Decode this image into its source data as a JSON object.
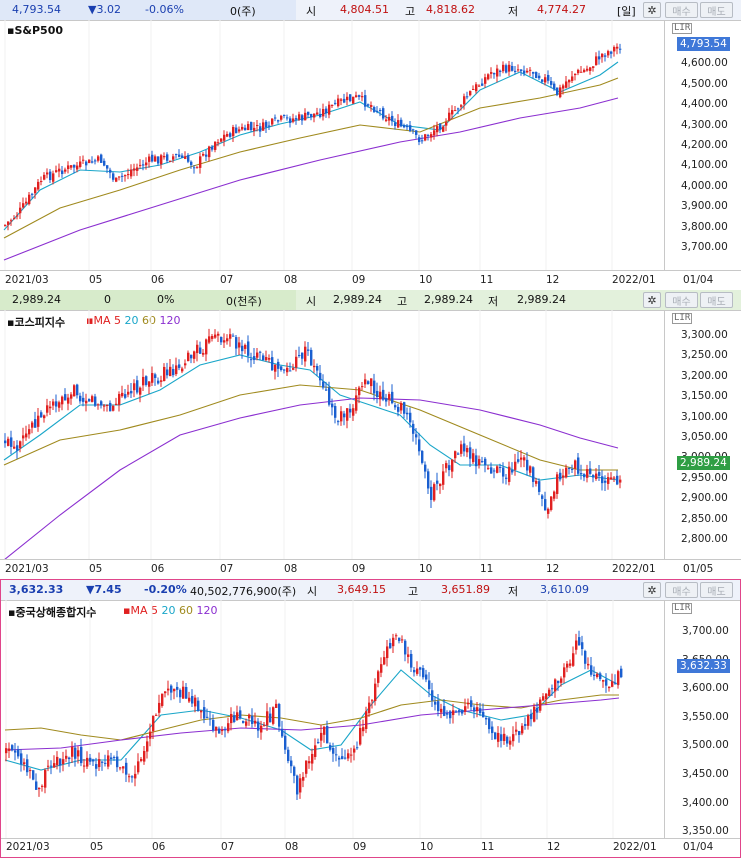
{
  "panels": [
    {
      "id": "sp500",
      "infobar": {
        "price": "4,793.54",
        "change": "▼3.02",
        "pct": "-0.06%",
        "volume": "0(주)",
        "open_label": "시",
        "open": "4,804.51",
        "high_label": "고",
        "high": "4,818.62",
        "low_label": "저",
        "low": "4,774.27",
        "period": "[일]",
        "buy": "매수",
        "sell": "매도"
      },
      "title": "S&P500",
      "last_price": "4,793.54",
      "y_ticks": [
        "4,700.00",
        "4,600.00",
        "4,500.00",
        "4,400.00",
        "4,300.00",
        "4,200.00",
        "4,100.00",
        "4,000.00",
        "3,900.00",
        "3,800.00",
        "3,700.00"
      ],
      "x_ticks": [
        "2021/03",
        "05",
        "06",
        "07",
        "08",
        "09",
        "10",
        "11",
        "12",
        "2022/01"
      ],
      "x_end": "01/04"
    },
    {
      "id": "kospi",
      "infobar": {
        "price": "2,989.24",
        "change": "0",
        "pct": "0%",
        "volume": "0(천주)",
        "open_label": "시",
        "open": "2,989.24",
        "high_label": "고",
        "high": "2,989.24",
        "low_label": "저",
        "low": "2,989.24",
        "buy": "매수",
        "sell": "매도"
      },
      "title": "코스피지수",
      "legend": {
        "prefix": "MA",
        "ma": [
          "5",
          "20",
          "60",
          "120"
        ]
      },
      "last_price": "2,989.24",
      "y_ticks": [
        "3,300.00",
        "3,250.00",
        "3,200.00",
        "3,150.00",
        "3,100.00",
        "3,050.00",
        "3,000.00",
        "2,950.00",
        "2,900.00",
        "2,850.00",
        "2,800.00"
      ],
      "x_ticks": [
        "2021/03",
        "05",
        "06",
        "07",
        "08",
        "09",
        "10",
        "11",
        "12",
        "2022/01"
      ],
      "x_end": "01/05"
    },
    {
      "id": "shanghai",
      "infobar": {
        "price": "3,632.33",
        "change": "▼7.45",
        "pct": "-0.20%",
        "volume": "40,502,776,900(주)",
        "open_label": "시",
        "open": "3,649.15",
        "high_label": "고",
        "high": "3,651.89",
        "low_label": "저",
        "low": "3,610.09",
        "buy": "매수",
        "sell": "매도"
      },
      "title": "중국상해종합지수",
      "legend": {
        "prefix": "MA",
        "ma": [
          "5",
          "20",
          "60",
          "120"
        ]
      },
      "last_price": "3,632.33",
      "y_ticks": [
        "3,700.00",
        "3,650.00",
        "3,600.00",
        "3,550.00",
        "3,500.00",
        "3,450.00",
        "3,400.00",
        "3,350.00"
      ],
      "x_ticks": [
        "2021/03",
        "05",
        "06",
        "07",
        "08",
        "09",
        "10",
        "11",
        "12",
        "2022/01"
      ],
      "x_end": "01/04"
    }
  ],
  "colors": {
    "up": "#e02020",
    "down": "#1a5fd0",
    "ma5": "#e02020",
    "ma20": "#1aa6c9",
    "ma60": "#a08a1e",
    "ma120": "#8b2fd0",
    "tag_blue": "#3f78d8",
    "tag_green": "#2f9e44",
    "infobar_bg": "#eef2fa",
    "infobar_bg_green": "#e3f1dc"
  },
  "icons": {
    "settings": "gear-icon"
  }
}
